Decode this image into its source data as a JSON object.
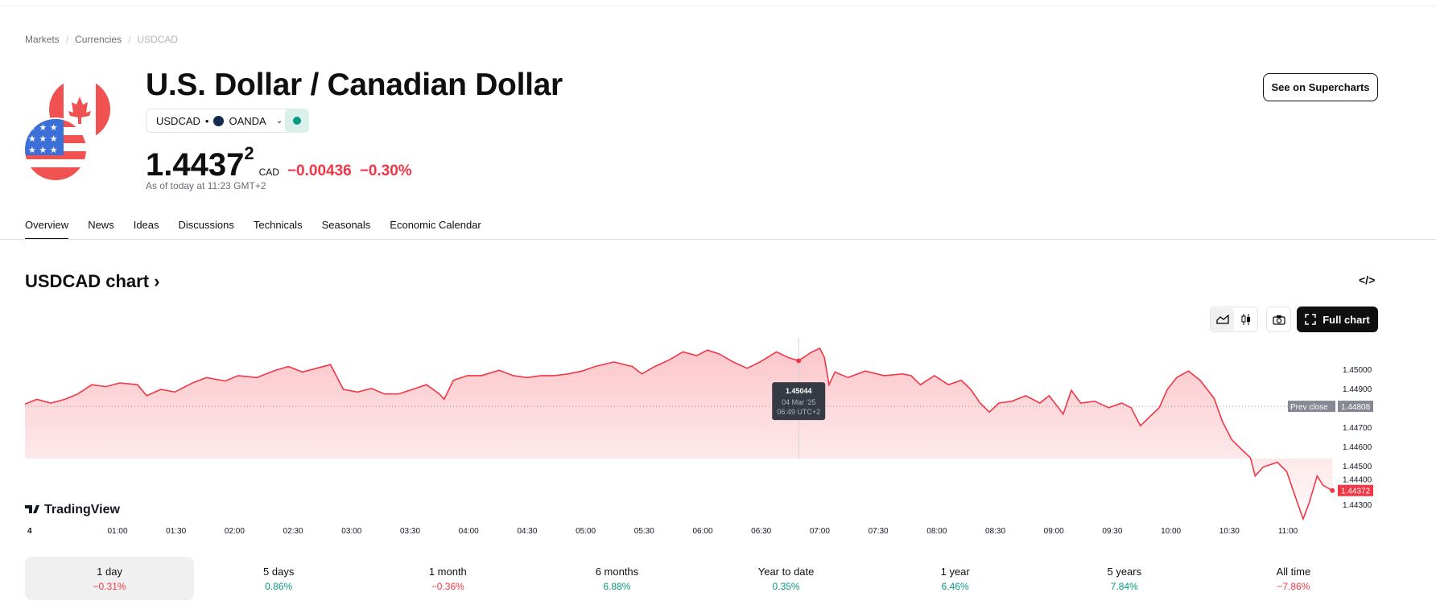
{
  "breadcrumb": [
    "Markets",
    "Currencies",
    "USDCAD"
  ],
  "header": {
    "title": "U.S. Dollar / Canadian Dollar",
    "symbol": "USDCAD",
    "exchange": "OANDA",
    "price_main": "1.4437",
    "price_sup": "2",
    "currency": "CAD",
    "change": "−0.00436",
    "change_pct": "−0.30%",
    "as_of": "As of today at 11:23 GMT+2",
    "supercharts": "See on Supercharts"
  },
  "tabs": [
    "Overview",
    "News",
    "Ideas",
    "Discussions",
    "Technicals",
    "Seasonals",
    "Economic Calendar"
  ],
  "chart_section": {
    "title": "USDCAD chart",
    "chevron": "›",
    "embed": "</>",
    "full_chart": "Full chart",
    "logo": "TradingView"
  },
  "colors": {
    "line": "#f23645",
    "positive": "#089981",
    "negative": "#f23645"
  },
  "chart_data": {
    "type": "area",
    "ylim": [
      1.442,
      1.4515
    ],
    "y_ticks": [
      "1.45000",
      "1.44900",
      "1.44700",
      "1.44600",
      "1.44500",
      "1.44400",
      "1.44300"
    ],
    "y_tick_values": [
      1.45,
      1.449,
      1.447,
      1.446,
      1.445,
      1.444,
      1.443
    ],
    "x_tick_labels": [
      "4",
      "01:00",
      "01:30",
      "02:00",
      "02:30",
      "03:00",
      "03:30",
      "04:00",
      "04:30",
      "05:00",
      "05:30",
      "06:00",
      "06:30",
      "07:00",
      "07:30",
      "08:00",
      "08:30",
      "09:00",
      "09:30",
      "10:00",
      "10:30",
      "11:00"
    ],
    "x_tick_hours": [
      0.23,
      1,
      1.5,
      2,
      2.5,
      3,
      3.5,
      4,
      4.5,
      5,
      5.5,
      6,
      6.5,
      7,
      7.5,
      8,
      8.5,
      9,
      9.5,
      10,
      10.5,
      11
    ],
    "prev_close": {
      "label": "Prev close",
      "value": "1.44808",
      "price": 1.44808
    },
    "last": {
      "value": "1.44372",
      "price": 1.44372
    },
    "tooltip": {
      "price": "1.45044",
      "date": "04 Mar '25",
      "time": "06:49 UTC+2",
      "hour": 6.82,
      "value": 1.45044
    },
    "t": [
      0.21,
      0.31,
      0.43,
      0.55,
      0.66,
      0.78,
      0.9,
      1.02,
      1.17,
      1.25,
      1.37,
      1.49,
      1.64,
      1.76,
      1.92,
      2.03,
      2.19,
      2.35,
      2.46,
      2.58,
      2.7,
      2.82,
      2.93,
      3.05,
      3.17,
      3.28,
      3.4,
      3.52,
      3.64,
      3.75,
      3.79,
      3.87,
      3.99,
      4.11,
      4.26,
      4.38,
      4.5,
      4.62,
      4.73,
      4.85,
      4.97,
      5.08,
      5.24,
      5.4,
      5.48,
      5.59,
      5.71,
      5.83,
      5.95,
      6.04,
      6.14,
      6.26,
      6.38,
      6.49,
      6.63,
      6.73,
      6.82,
      6.92,
      7.0,
      7.04,
      7.08,
      7.13,
      7.24,
      7.39,
      7.55,
      7.71,
      7.78,
      7.86,
      7.98,
      8.1,
      8.21,
      8.29,
      8.37,
      8.45,
      8.53,
      8.64,
      8.76,
      8.88,
      8.96,
      9.04,
      9.08,
      9.15,
      9.23,
      9.35,
      9.47,
      9.58,
      9.66,
      9.74,
      9.82,
      9.9,
      9.97,
      10.05,
      10.15,
      10.25,
      10.37,
      10.44,
      10.52,
      10.6,
      10.68,
      10.72,
      10.79,
      10.91,
      10.99,
      11.07,
      11.13,
      11.18,
      11.25,
      11.3,
      11.38
    ],
    "price": [
      1.4482,
      1.44844,
      1.44825,
      1.44844,
      1.44872,
      1.4492,
      1.4491,
      1.44929,
      1.4492,
      1.44863,
      1.44896,
      1.44882,
      1.44929,
      1.44957,
      1.44939,
      1.44967,
      1.44957,
      1.44995,
      1.45014,
      1.44986,
      1.45005,
      1.45024,
      1.44896,
      1.44882,
      1.44901,
      1.44872,
      1.44872,
      1.44896,
      1.4492,
      1.44872,
      1.44844,
      1.44943,
      1.44967,
      1.44967,
      1.44995,
      1.44967,
      1.44957,
      1.44967,
      1.44967,
      1.44976,
      1.44991,
      1.45014,
      1.45038,
      1.45014,
      1.44976,
      1.45014,
      1.45047,
      1.4509,
      1.45071,
      1.45099,
      1.4508,
      1.45038,
      1.45005,
      1.45038,
      1.4509,
      1.45061,
      1.45044,
      1.45085,
      1.45109,
      1.45061,
      1.4492,
      1.44986,
      1.44957,
      1.44991,
      1.44967,
      1.44976,
      1.44967,
      1.4492,
      1.44967,
      1.4492,
      1.44943,
      1.44896,
      1.44825,
      1.44778,
      1.44825,
      1.44834,
      1.44863,
      1.44825,
      1.44863,
      1.44801,
      1.44768,
      1.44891,
      1.44825,
      1.44834,
      1.44801,
      1.44825,
      1.44801,
      1.44707,
      1.44754,
      1.44801,
      1.44896,
      1.44957,
      1.44991,
      1.44943,
      1.44849,
      1.4473,
      1.44636,
      1.44588,
      1.44541,
      1.44447,
      1.44494,
      1.44518,
      1.4447,
      1.44328,
      1.44224,
      1.44305,
      1.44447,
      1.44399,
      1.44372
    ]
  },
  "ranges": [
    {
      "label": "1 day",
      "value": "−0.31%",
      "dir": "neg"
    },
    {
      "label": "5 days",
      "value": "0.86%",
      "dir": "pos"
    },
    {
      "label": "1 month",
      "value": "−0.36%",
      "dir": "neg"
    },
    {
      "label": "6 months",
      "value": "6.88%",
      "dir": "pos"
    },
    {
      "label": "Year to date",
      "value": "0.35%",
      "dir": "pos"
    },
    {
      "label": "1 year",
      "value": "6.46%",
      "dir": "pos"
    },
    {
      "label": "5 years",
      "value": "7.84%",
      "dir": "pos"
    },
    {
      "label": "All time",
      "value": "−7.86%",
      "dir": "neg"
    }
  ]
}
